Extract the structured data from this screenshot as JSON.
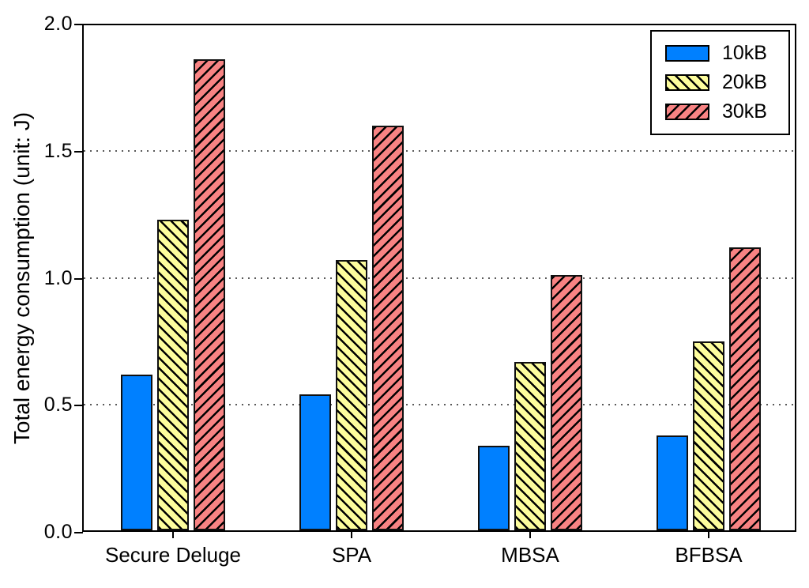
{
  "figure": {
    "background": "#ffffff",
    "frame_color": "#000000",
    "text_color": "#000000"
  },
  "chart_data": {
    "type": "bar",
    "title": "",
    "xlabel": "",
    "ylabel": "Total energy consumption (unit: J)",
    "ylim": [
      0.0,
      2.0
    ],
    "ytick_labels": [
      "0.0",
      "0.5",
      "1.0",
      "1.5",
      "2.0"
    ],
    "gridline_values": [
      0.5,
      1.0,
      1.5
    ],
    "gridline_style": "dotted",
    "grid": "horizontal-only",
    "categories": [
      "Secure Deluge",
      "SPA",
      "MBSA",
      "BFBSA"
    ],
    "series": [
      {
        "name": "10kB",
        "color": "#0080ff",
        "hatch": "none",
        "values": [
          0.62,
          0.54,
          0.34,
          0.38
        ]
      },
      {
        "name": "20kB",
        "color": "#fdfd9d",
        "hatch": "forward-diagonal",
        "values": [
          1.23,
          1.07,
          0.67,
          0.75
        ]
      },
      {
        "name": "30kB",
        "color": "#f88383",
        "hatch": "back-diagonal",
        "values": [
          1.86,
          1.6,
          1.01,
          1.12
        ]
      }
    ],
    "legend": {
      "position": "top-right",
      "entries": [
        "10kB",
        "20kB",
        "30kB"
      ]
    }
  }
}
